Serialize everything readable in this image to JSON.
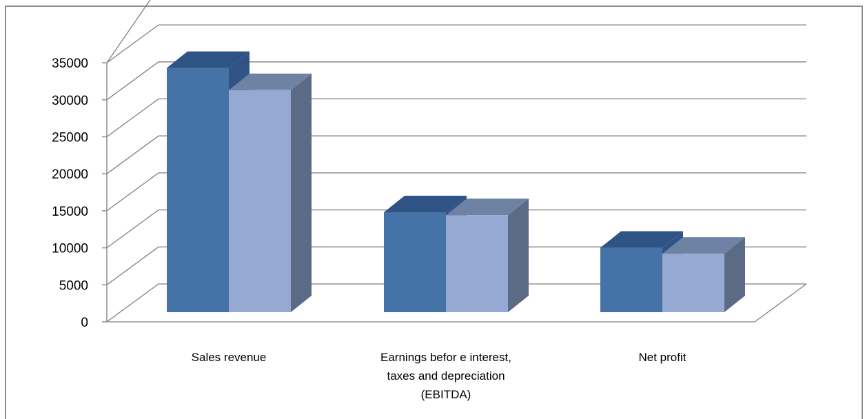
{
  "chart_data": {
    "type": "bar",
    "title": "",
    "xlabel": "",
    "ylabel": "",
    "ylim": [
      0,
      35000
    ],
    "yticks": [
      0,
      5000,
      10000,
      15000,
      20000,
      25000,
      30000,
      35000
    ],
    "grid": true,
    "legend": "none",
    "categories": [
      [
        "Sales revenue"
      ],
      [
        "Earnings befor e interest,",
        "taxes and depreciation",
        "(EBITDA)"
      ],
      [
        "Net profit"
      ]
    ],
    "series": [
      {
        "values": [
          33000,
          13500,
          8700
        ]
      },
      {
        "values": [
          30000,
          13100,
          7900
        ]
      }
    ],
    "colors": {
      "series1_front": "#4572a7",
      "series1_top": "#2f5385",
      "series2_front": "#95a9d2",
      "series2_top": "#6e83a3",
      "series2_side": "#5b6b86",
      "grid": "#7f7f7f",
      "axis_line": "#8c8c8c"
    }
  }
}
